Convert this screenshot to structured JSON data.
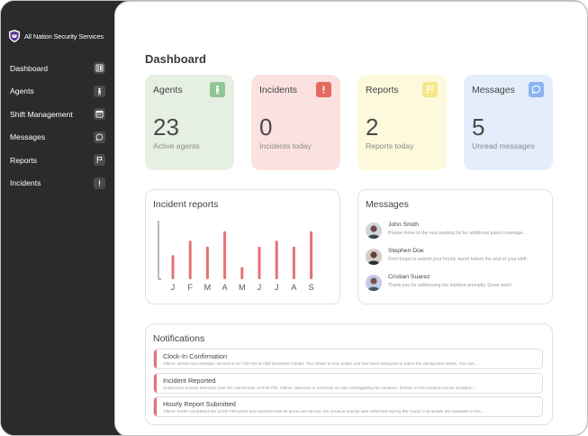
{
  "brand": {
    "name": "All Nation Security Services"
  },
  "sidebar": {
    "items": [
      {
        "label": "Dashboard",
        "icon": "dashboard-icon"
      },
      {
        "label": "Agents",
        "icon": "person-icon"
      },
      {
        "label": "Shift Management",
        "icon": "calendar-icon"
      },
      {
        "label": "Messages",
        "icon": "chat-icon"
      },
      {
        "label": "Reports",
        "icon": "flag-icon"
      },
      {
        "label": "Incidents",
        "icon": "alert-icon"
      }
    ]
  },
  "main": {
    "title": "Dashboard"
  },
  "stats": [
    {
      "title": "Agents",
      "value": "23",
      "caption": "Active agents",
      "bg": "#e6f0e2",
      "icon_bg": "#8fc592",
      "icon": "person-icon"
    },
    {
      "title": "Incidents",
      "value": "0",
      "caption": "Incidents today",
      "bg": "#fbe2e0",
      "icon_bg": "#e56a5e",
      "icon": "alert-icon"
    },
    {
      "title": "Reports",
      "value": "2",
      "caption": "Reports today",
      "bg": "#fdf9dc",
      "icon_bg": "#f5e78a",
      "icon": "flag-icon"
    },
    {
      "title": "Messages",
      "value": "5",
      "caption": "Unread messages",
      "bg": "#e3edfb",
      "icon_bg": "#8ab4ef",
      "icon": "chat-icon"
    }
  ],
  "incident_reports": {
    "title": "Incident reports"
  },
  "chart_data": {
    "type": "bar",
    "categories": [
      "J",
      "F",
      "M",
      "A",
      "M",
      "J",
      "J",
      "A",
      "S"
    ],
    "values": [
      28,
      45,
      38,
      56,
      14,
      38,
      45,
      38,
      56
    ],
    "ylim": [
      0,
      65
    ],
    "color": "#e57373",
    "grid": false,
    "title": "Incident reports"
  },
  "messages": {
    "title": "Messages",
    "items": [
      {
        "name": "John Smith",
        "text": "Please move to the east parking lot for additional patrol coverage..."
      },
      {
        "name": "Stephen Doe",
        "text": "Dont forget to submit your hourly report before the end of your shift."
      },
      {
        "name": "Cristian Suarez",
        "text": "Thank you for addressing the incident promptly. Great work!"
      }
    ]
  },
  "notifications": {
    "title": "Notifications",
    "items": [
      {
        "title": "Clock-In Confirmation",
        "text": "Officer Jamen successfully clocked in at 7:00 AM at ABE Business Center. The officer is now active and has been assigned to patrol the designated areas. You can..."
      },
      {
        "title": "Incident Reported",
        "text": "Suspicious activity detected near the warehouse at 9:30 PM. Officer Jameson is currently on-site investigating the situation. Details of the incident will be included..."
      },
      {
        "title": "Hourly Report Submitted",
        "text": "Officer Smith completed the 10:00 PM patrol and reported that all areas are secure. No unusual activity was observed during the round. Full details are available in the..."
      }
    ]
  }
}
